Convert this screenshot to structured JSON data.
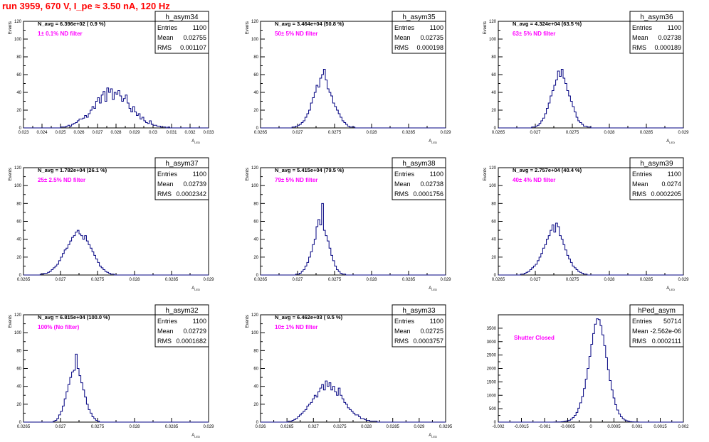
{
  "page": {
    "title": "run 3959,   670 V, I_pe ≈ 3.50 nA, 120 Hz"
  },
  "colors": {
    "histogram": "#000080",
    "annotation": "#ff00ff",
    "title": "#ff0000",
    "axis": "#000000"
  },
  "chart_data": [
    {
      "type": "histogram",
      "name": "h_asym34",
      "ylabel": "Events",
      "xlabel": "A_LED",
      "xlim": [
        0.023,
        0.033
      ],
      "ylim": [
        0,
        120
      ],
      "yticks": [
        "0",
        "20",
        "40",
        "60",
        "80",
        "100",
        "120"
      ],
      "xticks": [
        "0.023",
        "0.024",
        "0.025",
        "0.026",
        "0.027",
        "0.028",
        "0.029",
        "0.03",
        "0.031",
        "0.032",
        "0.033"
      ],
      "navg": "N_avg = 6.396e+02 ( 0.9 %)",
      "filter": "1± 0.1% ND filter",
      "stats": {
        "entries": "1100",
        "mean": "0.02755",
        "rms": "0.001107"
      },
      "nbins": 100,
      "values": [
        0,
        0,
        0,
        0,
        0,
        0,
        0,
        0,
        0,
        0,
        0,
        0,
        0,
        0,
        0,
        0,
        0,
        0,
        0,
        0,
        1,
        1,
        1,
        2,
        3,
        2,
        4,
        5,
        6,
        8,
        10,
        10,
        11,
        14,
        12,
        16,
        20,
        24,
        22,
        30,
        34,
        28,
        37,
        41,
        30,
        45,
        40,
        44,
        32,
        40,
        38,
        42,
        36,
        30,
        33,
        37,
        28,
        22,
        18,
        24,
        18,
        14,
        16,
        10,
        12,
        8,
        6,
        5,
        8,
        4,
        3,
        3,
        2,
        2,
        1,
        1,
        1,
        0,
        1,
        0,
        0,
        0,
        0,
        0,
        0,
        0,
        0,
        0,
        0,
        0,
        0,
        0,
        0,
        0,
        0,
        0,
        0,
        0,
        0,
        0
      ]
    },
    {
      "type": "histogram",
      "name": "h_asym35",
      "ylabel": "Events",
      "xlabel": "A_LED",
      "xlim": [
        0.0265,
        0.029
      ],
      "ylim": [
        0,
        120
      ],
      "yticks": [
        "0",
        "20",
        "40",
        "60",
        "80",
        "100",
        "120"
      ],
      "xticks": [
        "0.0265",
        "0.027",
        "0.0275",
        "0.028",
        "0.0285",
        "0.029"
      ],
      "navg": "N_avg = 3.464e+04 (50.8 %)",
      "filter": "50± 5% ND filter",
      "stats": {
        "entries": "1100",
        "mean": "0.02735",
        "rms": "0.000198"
      },
      "nbins": 100,
      "values": [
        0,
        0,
        0,
        0,
        0,
        0,
        0,
        0,
        0,
        0,
        0,
        0,
        0,
        0,
        0,
        0,
        0,
        1,
        1,
        2,
        3,
        4,
        6,
        8,
        12,
        16,
        20,
        28,
        34,
        40,
        48,
        46,
        56,
        60,
        66,
        54,
        44,
        40,
        36,
        28,
        24,
        20,
        16,
        12,
        8,
        6,
        4,
        2,
        1,
        1,
        1,
        0,
        0,
        0,
        0,
        0,
        0,
        0,
        0,
        0,
        0,
        0,
        0,
        0,
        0,
        0,
        0,
        0,
        0,
        0,
        0,
        0,
        0,
        0,
        0,
        0,
        0,
        0,
        0,
        0,
        0,
        0,
        0,
        0,
        0,
        0,
        0,
        0,
        0,
        0,
        0,
        0,
        0,
        0,
        0,
        0,
        0,
        0,
        0,
        0
      ]
    },
    {
      "type": "histogram",
      "name": "h_asym36",
      "ylabel": "Events",
      "xlabel": "A_LED",
      "xlim": [
        0.0265,
        0.029
      ],
      "ylim": [
        0,
        120
      ],
      "yticks": [
        "0",
        "20",
        "40",
        "60",
        "80",
        "100",
        "120"
      ],
      "xticks": [
        "0.0265",
        "0.027",
        "0.0275",
        "0.028",
        "0.0285",
        "0.029"
      ],
      "navg": "N_avg = 4.324e+04 (63.5 %)",
      "filter": "63± 5% ND filter",
      "stats": {
        "entries": "1100",
        "mean": "0.02738",
        "rms": "0.000189"
      },
      "nbins": 100,
      "values": [
        0,
        0,
        0,
        0,
        0,
        0,
        0,
        0,
        0,
        0,
        0,
        0,
        0,
        0,
        0,
        0,
        0,
        0,
        1,
        1,
        2,
        3,
        5,
        8,
        11,
        16,
        22,
        28,
        36,
        42,
        48,
        54,
        64,
        58,
        66,
        56,
        50,
        42,
        36,
        30,
        24,
        18,
        12,
        8,
        6,
        4,
        2,
        2,
        1,
        1,
        0,
        0,
        0,
        0,
        0,
        0,
        0,
        0,
        0,
        0,
        0,
        0,
        0,
        0,
        0,
        0,
        0,
        0,
        0,
        0,
        0,
        0,
        0,
        0,
        0,
        0,
        0,
        0,
        0,
        0,
        0,
        0,
        0,
        0,
        0,
        0,
        0,
        0,
        0,
        0,
        0,
        0,
        0,
        0,
        0,
        0,
        0,
        0,
        0,
        0
      ]
    },
    {
      "type": "histogram",
      "name": "h_asym37",
      "ylabel": "Events",
      "xlabel": "A_LED",
      "xlim": [
        0.0265,
        0.029
      ],
      "ylim": [
        0,
        120
      ],
      "yticks": [
        "0",
        "20",
        "40",
        "60",
        "80",
        "100",
        "120"
      ],
      "xticks": [
        "0.0265",
        "0.027",
        "0.0275",
        "0.028",
        "0.0285",
        "0.029"
      ],
      "navg": "N_avg = 1.782e+04 (26.1 %)",
      "filter": "25± 2.5% ND filter",
      "stats": {
        "entries": "1100",
        "mean": "0.02739",
        "rms": "0.0002342"
      },
      "nbins": 100,
      "values": [
        0,
        0,
        0,
        0,
        0,
        0,
        0,
        0,
        0,
        1,
        1,
        2,
        2,
        3,
        4,
        6,
        8,
        10,
        12,
        16,
        20,
        24,
        28,
        30,
        34,
        38,
        42,
        44,
        48,
        50,
        46,
        44,
        40,
        44,
        38,
        34,
        30,
        26,
        22,
        18,
        14,
        10,
        8,
        6,
        4,
        3,
        2,
        1,
        1,
        0,
        0,
        0,
        0,
        0,
        0,
        0,
        0,
        0,
        0,
        0,
        0,
        0,
        0,
        0,
        0,
        0,
        0,
        0,
        0,
        0,
        0,
        0,
        0,
        0,
        0,
        0,
        0,
        0,
        0,
        0,
        0,
        0,
        0,
        0,
        0,
        0,
        0,
        0,
        0,
        0,
        0,
        0,
        0,
        0,
        0,
        0,
        0,
        0,
        0,
        0
      ]
    },
    {
      "type": "histogram",
      "name": "h_asym38",
      "ylabel": "Events",
      "xlabel": "A_LED",
      "xlim": [
        0.0265,
        0.029
      ],
      "ylim": [
        0,
        120
      ],
      "yticks": [
        "0",
        "20",
        "40",
        "60",
        "80",
        "100",
        "120"
      ],
      "xticks": [
        "0.0265",
        "0.027",
        "0.0275",
        "0.028",
        "0.0285",
        "0.029"
      ],
      "navg": "N_avg = 5.415e+04 (79.5 %)",
      "filter": "79± 5% ND filter",
      "stats": {
        "entries": "1100",
        "mean": "0.02738",
        "rms": "0.0001756"
      },
      "nbins": 100,
      "values": [
        0,
        0,
        0,
        0,
        0,
        0,
        0,
        0,
        0,
        0,
        0,
        0,
        0,
        0,
        0,
        0,
        0,
        0,
        0,
        1,
        1,
        2,
        4,
        6,
        10,
        14,
        20,
        26,
        34,
        40,
        54,
        62,
        56,
        80,
        50,
        44,
        38,
        30,
        22,
        16,
        10,
        6,
        4,
        2,
        1,
        1,
        0,
        0,
        0,
        0,
        0,
        0,
        0,
        0,
        0,
        0,
        0,
        0,
        0,
        0,
        0,
        0,
        0,
        0,
        0,
        0,
        0,
        0,
        0,
        0,
        0,
        0,
        0,
        0,
        0,
        0,
        0,
        0,
        0,
        0,
        0,
        0,
        0,
        0,
        0,
        0,
        0,
        0,
        0,
        0,
        0,
        0,
        0,
        0,
        0,
        0,
        0,
        0,
        0,
        0
      ]
    },
    {
      "type": "histogram",
      "name": "h_asym39",
      "ylabel": "Events",
      "xlabel": "A_LED",
      "xlim": [
        0.0265,
        0.029
      ],
      "ylim": [
        0,
        120
      ],
      "yticks": [
        "0",
        "20",
        "40",
        "60",
        "80",
        "100",
        "120"
      ],
      "xticks": [
        "0.0265",
        "0.027",
        "0.0275",
        "0.028",
        "0.0285",
        "0.029"
      ],
      "navg": "N_avg = 2.757e+04 (40.4 %)",
      "filter": "40± 4% ND filter",
      "stats": {
        "entries": "1100",
        "mean": "0.0274",
        "rms": "0.0002205"
      },
      "nbins": 100,
      "values": [
        0,
        0,
        0,
        0,
        0,
        0,
        0,
        0,
        0,
        0,
        0,
        0,
        1,
        1,
        2,
        3,
        4,
        6,
        8,
        10,
        12,
        16,
        20,
        24,
        30,
        34,
        40,
        44,
        50,
        56,
        48,
        58,
        54,
        44,
        40,
        34,
        28,
        22,
        18,
        14,
        10,
        8,
        6,
        4,
        3,
        2,
        1,
        1,
        0,
        0,
        0,
        0,
        0,
        0,
        0,
        0,
        0,
        0,
        0,
        0,
        0,
        0,
        0,
        0,
        0,
        0,
        0,
        0,
        0,
        0,
        0,
        0,
        0,
        0,
        0,
        0,
        0,
        0,
        0,
        0,
        0,
        0,
        0,
        0,
        0,
        0,
        0,
        0,
        0,
        0,
        0,
        0,
        0,
        0,
        0,
        0,
        0,
        0,
        0,
        0
      ]
    },
    {
      "type": "histogram",
      "name": "h_asym32",
      "ylabel": "Events",
      "xlabel": "A_LED",
      "xlim": [
        0.0265,
        0.029
      ],
      "ylim": [
        0,
        120
      ],
      "yticks": [
        "0",
        "20",
        "40",
        "60",
        "80",
        "100",
        "120"
      ],
      "xticks": [
        "0.0265",
        "0.027",
        "0.0275",
        "0.028",
        "0.0285",
        "0.029"
      ],
      "navg": "N_avg = 6.815e+04 (100.0 %)",
      "filter": "100% (No filter)",
      "stats": {
        "entries": "1100",
        "mean": "0.02729",
        "rms": "0.0001682"
      },
      "nbins": 100,
      "values": [
        0,
        0,
        0,
        0,
        0,
        0,
        0,
        0,
        0,
        0,
        0,
        0,
        0,
        0,
        0,
        0,
        1,
        2,
        4,
        8,
        12,
        18,
        26,
        34,
        42,
        50,
        56,
        58,
        76,
        60,
        52,
        44,
        36,
        28,
        20,
        14,
        10,
        6,
        4,
        2,
        1,
        0,
        0,
        0,
        0,
        0,
        0,
        0,
        0,
        0,
        0,
        0,
        0,
        0,
        0,
        0,
        0,
        0,
        0,
        0,
        0,
        0,
        0,
        0,
        0,
        0,
        0,
        0,
        0,
        0,
        0,
        0,
        0,
        0,
        0,
        0,
        0,
        0,
        0,
        0,
        0,
        0,
        0,
        0,
        0,
        0,
        0,
        0,
        0,
        0,
        0,
        0,
        0,
        0,
        0,
        0,
        0,
        0,
        0,
        0
      ]
    },
    {
      "type": "histogram",
      "name": "h_asym33",
      "ylabel": "Events",
      "xlabel": "A_LED",
      "xlim": [
        0.026,
        0.0295
      ],
      "ylim": [
        0,
        120
      ],
      "yticks": [
        "0",
        "20",
        "40",
        "60",
        "80",
        "100",
        "120"
      ],
      "xticks": [
        "0.026",
        "0.0265",
        "0.027",
        "0.0275",
        "0.028",
        "0.0285",
        "0.029",
        "0.0295"
      ],
      "navg": "N_avg = 6.462e+03 ( 9.5 %)",
      "filter": "10± 1% ND filter",
      "stats": {
        "entries": "1100",
        "mean": "0.02725",
        "rms": "0.0003757"
      },
      "nbins": 100,
      "values": [
        0,
        0,
        0,
        0,
        0,
        0,
        0,
        0,
        0,
        0,
        0,
        0,
        0,
        0,
        0,
        1,
        1,
        2,
        3,
        4,
        6,
        8,
        10,
        12,
        14,
        18,
        20,
        22,
        26,
        30,
        28,
        34,
        38,
        42,
        36,
        46,
        40,
        44,
        36,
        40,
        34,
        30,
        38,
        30,
        26,
        22,
        20,
        16,
        14,
        12,
        10,
        8,
        8,
        6,
        4,
        4,
        3,
        2,
        2,
        1,
        1,
        1,
        1,
        0,
        0,
        0,
        0,
        0,
        0,
        0,
        0,
        0,
        0,
        0,
        0,
        0,
        0,
        0,
        0,
        0,
        0,
        0,
        0,
        0,
        0,
        0,
        0,
        0,
        0,
        0,
        0,
        0,
        0,
        0,
        0,
        0,
        0,
        0,
        0,
        0
      ]
    },
    {
      "type": "histogram",
      "name": "hPed_asym",
      "ylabel": "",
      "xlabel": "",
      "xlim": [
        -0.002,
        0.002
      ],
      "ylim": [
        0,
        4000
      ],
      "yticks": [
        "0",
        "500",
        "1000",
        "1500",
        "2000",
        "2500",
        "3000",
        "3500"
      ],
      "ytickvals": [
        0,
        500,
        1000,
        1500,
        2000,
        2500,
        3000,
        3500
      ],
      "xticks": [
        "-0.002",
        "-0.0015",
        "-0.001",
        "-0.0005",
        "0",
        "0.0005",
        "0.001",
        "0.0015",
        "0.002"
      ],
      "navg": "",
      "filter": "Shutter Closed",
      "stats": {
        "entries": "50714",
        "mean": "-2.562e-06",
        "rms": "0.0002111"
      },
      "nbins": 100,
      "values": [
        0,
        0,
        0,
        0,
        0,
        0,
        0,
        0,
        0,
        0,
        0,
        0,
        0,
        0,
        0,
        0,
        0,
        0,
        0,
        0,
        0,
        0,
        0,
        0,
        0,
        0,
        0,
        0,
        0,
        1,
        2,
        3,
        5,
        8,
        12,
        20,
        32,
        50,
        70,
        110,
        170,
        250,
        360,
        520,
        720,
        950,
        1250,
        1600,
        2000,
        2450,
        2900,
        3300,
        3650,
        3850,
        3820,
        3600,
        3250,
        2850,
        2400,
        1950,
        1550,
        1200,
        900,
        650,
        450,
        300,
        200,
        130,
        80,
        50,
        30,
        18,
        10,
        6,
        3,
        2,
        1,
        0,
        0,
        0,
        0,
        0,
        0,
        0,
        0,
        0,
        0,
        0,
        0,
        0,
        0,
        0,
        0,
        0,
        0,
        0,
        0,
        0,
        0,
        0
      ]
    }
  ]
}
